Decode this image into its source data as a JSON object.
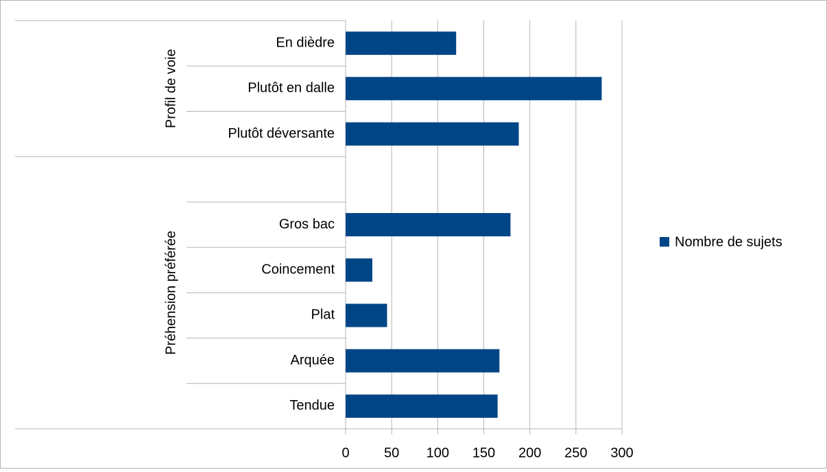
{
  "chart_data": {
    "type": "bar",
    "orientation": "horizontal",
    "groups": [
      {
        "label": "Profil de voie",
        "categories": [
          "En dièdre",
          "Plutôt en dalle",
          "Plutôt déversante"
        ],
        "values": [
          120,
          278,
          188
        ]
      },
      {
        "label": "Préhension préférée",
        "categories": [
          null,
          "Gros bac",
          "Coincement",
          "Plat",
          "Arquée",
          "Tendue"
        ],
        "values": [
          null,
          179,
          29,
          45,
          167,
          165
        ]
      }
    ],
    "series_name": "Nombre de sujets",
    "color": "#004586",
    "xlim": [
      0,
      300
    ],
    "xticks": [
      0,
      50,
      100,
      150,
      200,
      250,
      300
    ],
    "grid": true,
    "legend": "right"
  }
}
